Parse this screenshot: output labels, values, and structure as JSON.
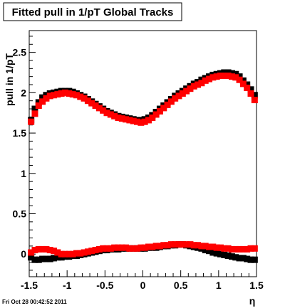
{
  "timestamp": "Fri Oct 28 00:42:52 2011",
  "chart_data": {
    "type": "scatter",
    "title": "Fitted pull in 1/pT  Global Tracks",
    "xlabel": "η",
    "ylabel": "pull in 1/pT",
    "xlim": [
      -1.5,
      1.5
    ],
    "ylim": [
      -0.28,
      2.77
    ],
    "xticks": [
      "-1.5",
      "-1",
      "-0.5",
      "0",
      "0.5",
      "1",
      "1.5"
    ],
    "xtick_values": [
      -1.5,
      -1,
      -0.5,
      0,
      0.5,
      1,
      1.5
    ],
    "yticks": [
      "0",
      "0.5",
      "1",
      "1.5",
      "2",
      "2.5"
    ],
    "ytick_values": [
      0,
      0.5,
      1,
      1.5,
      2,
      2.5
    ],
    "grid": false,
    "legend": "none",
    "x": [
      -1.475,
      -1.425,
      -1.375,
      -1.325,
      -1.275,
      -1.225,
      -1.175,
      -1.125,
      -1.075,
      -1.025,
      -0.975,
      -0.925,
      -0.875,
      -0.825,
      -0.775,
      -0.725,
      -0.675,
      -0.625,
      -0.575,
      -0.525,
      -0.475,
      -0.425,
      -0.375,
      -0.325,
      -0.275,
      -0.225,
      -0.175,
      -0.125,
      -0.075,
      -0.025,
      0.025,
      0.075,
      0.125,
      0.175,
      0.225,
      0.275,
      0.325,
      0.375,
      0.425,
      0.475,
      0.525,
      0.575,
      0.625,
      0.675,
      0.725,
      0.775,
      0.825,
      0.875,
      0.925,
      0.975,
      1.025,
      1.075,
      1.125,
      1.175,
      1.225,
      1.275,
      1.325,
      1.375,
      1.425,
      1.475
    ],
    "series": [
      {
        "color": "#000000",
        "values": [
          1.66,
          1.8,
          1.88,
          1.94,
          1.97,
          1.99,
          2.0,
          2.01,
          2.02,
          2.02,
          2.02,
          2.01,
          1.99,
          1.97,
          1.95,
          1.92,
          1.89,
          1.86,
          1.83,
          1.8,
          1.77,
          1.75,
          1.73,
          1.71,
          1.7,
          1.69,
          1.68,
          1.67,
          1.66,
          1.66,
          1.67,
          1.69,
          1.72,
          1.76,
          1.8,
          1.84,
          1.88,
          1.92,
          1.96,
          1.99,
          2.02,
          2.05,
          2.08,
          2.11,
          2.13,
          2.16,
          2.18,
          2.2,
          2.22,
          2.23,
          2.24,
          2.25,
          2.25,
          2.24,
          2.23,
          2.2,
          2.15,
          2.1,
          2.04,
          1.97
        ]
      },
      {
        "color": "#ff0000",
        "values": [
          1.64,
          1.74,
          1.84,
          1.89,
          1.93,
          1.96,
          1.97,
          1.98,
          1.99,
          2.0,
          1.99,
          1.98,
          1.97,
          1.95,
          1.93,
          1.9,
          1.87,
          1.84,
          1.81,
          1.78,
          1.75,
          1.73,
          1.71,
          1.69,
          1.68,
          1.67,
          1.66,
          1.65,
          1.64,
          1.63,
          1.64,
          1.66,
          1.69,
          1.73,
          1.77,
          1.81,
          1.85,
          1.89,
          1.93,
          1.96,
          1.99,
          2.02,
          2.05,
          2.08,
          2.1,
          2.12,
          2.15,
          2.17,
          2.19,
          2.2,
          2.21,
          2.21,
          2.21,
          2.2,
          2.19,
          2.16,
          2.11,
          2.06,
          1.99,
          1.91
        ]
      },
      {
        "color": "#000000",
        "values": [
          -0.04,
          -0.07,
          -0.07,
          -0.06,
          -0.06,
          -0.06,
          -0.05,
          -0.04,
          -0.04,
          -0.03,
          -0.03,
          -0.02,
          -0.02,
          -0.01,
          0.0,
          0.01,
          0.02,
          0.03,
          0.04,
          0.05,
          0.05,
          0.06,
          0.06,
          0.06,
          0.07,
          0.07,
          0.07,
          0.07,
          0.07,
          0.07,
          0.07,
          0.08,
          0.08,
          0.08,
          0.09,
          0.1,
          0.1,
          0.11,
          0.11,
          0.12,
          0.12,
          0.11,
          0.1,
          0.09,
          0.08,
          0.07,
          0.05,
          0.04,
          0.02,
          0.01,
          0.0,
          -0.01,
          -0.02,
          -0.03,
          -0.04,
          -0.05,
          -0.05,
          -0.06,
          -0.07,
          -0.07
        ]
      },
      {
        "color": "#ff0000",
        "values": [
          0.02,
          0.05,
          0.06,
          0.06,
          0.06,
          0.05,
          0.04,
          0.02,
          0.0,
          0.0,
          0.0,
          0.0,
          0.01,
          0.01,
          0.02,
          0.03,
          0.04,
          0.05,
          0.06,
          0.07,
          0.07,
          0.07,
          0.08,
          0.08,
          0.08,
          0.08,
          0.07,
          0.07,
          0.07,
          0.08,
          0.08,
          0.09,
          0.09,
          0.1,
          0.1,
          0.11,
          0.11,
          0.12,
          0.12,
          0.12,
          0.12,
          0.12,
          0.12,
          0.11,
          0.11,
          0.1,
          0.1,
          0.09,
          0.09,
          0.08,
          0.08,
          0.07,
          0.07,
          0.06,
          0.06,
          0.06,
          0.06,
          0.06,
          0.07,
          0.07
        ]
      }
    ]
  }
}
